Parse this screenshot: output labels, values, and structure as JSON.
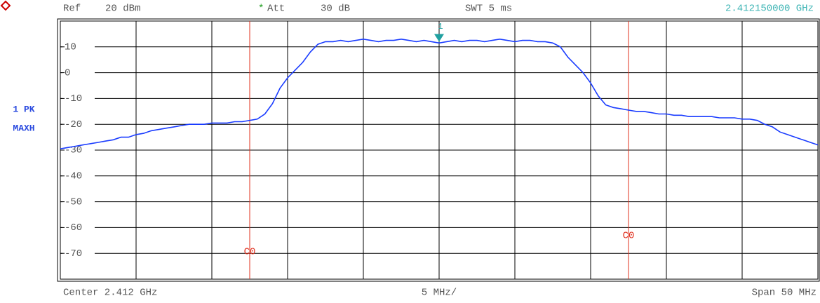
{
  "chart_data": {
    "type": "line",
    "ref": "Ref",
    "ref_level": "20 dBm",
    "att_flag": "*",
    "att": "Att",
    "att_value": "30 dB",
    "swt": "SWT 5 ms",
    "marker_frequency": "2.412150000 GHz",
    "trace_mode": "1 PK",
    "trace_detector": "MAXH",
    "center": "Center 2.412 GHz",
    "per_division": "5 MHz/",
    "span": "Span 50 MHz",
    "xlim": [
      2.387,
      2.437
    ],
    "xticks": [
      2.387,
      2.392,
      2.397,
      2.402,
      2.407,
      2.412,
      2.417,
      2.422,
      2.427,
      2.432,
      2.437
    ],
    "ylim": [
      -80,
      20
    ],
    "yticks": [
      10,
      0,
      -10,
      -20,
      -30,
      -40,
      -50,
      -60,
      -70
    ],
    "grid": true,
    "x": [
      2.387,
      2.3875,
      2.388,
      2.3885,
      2.389,
      2.3895,
      2.39,
      2.3905,
      2.391,
      2.3915,
      2.392,
      2.3925,
      2.393,
      2.3935,
      2.394,
      2.3945,
      2.395,
      2.3955,
      2.396,
      2.3965,
      2.397,
      2.3975,
      2.398,
      2.3985,
      2.399,
      2.3995,
      2.4,
      2.4005,
      2.401,
      2.4015,
      2.402,
      2.4025,
      2.403,
      2.4035,
      2.404,
      2.4045,
      2.405,
      2.4055,
      2.406,
      2.4065,
      2.407,
      2.4075,
      2.408,
      2.4085,
      2.409,
      2.4095,
      2.41,
      2.4105,
      2.411,
      2.4115,
      2.412,
      2.4125,
      2.413,
      2.4135,
      2.414,
      2.4145,
      2.415,
      2.4155,
      2.416,
      2.4165,
      2.417,
      2.4175,
      2.418,
      2.4185,
      2.419,
      2.4195,
      2.42,
      2.4205,
      2.421,
      2.4215,
      2.422,
      2.4225,
      2.423,
      2.4235,
      2.424,
      2.4245,
      2.425,
      2.4255,
      2.426,
      2.4265,
      2.427,
      2.4275,
      2.428,
      2.4285,
      2.429,
      2.4295,
      2.43,
      2.4305,
      2.431,
      2.4315,
      2.432,
      2.4325,
      2.433,
      2.4335,
      2.434,
      2.4345,
      2.435,
      2.4355,
      2.436,
      2.4365,
      2.437
    ],
    "series": [
      {
        "color": "#1a3cff",
        "values": [
          -29.5,
          -29,
          -28.5,
          -28,
          -27.5,
          -27,
          -26.5,
          -26,
          -25,
          -25,
          -24,
          -23.5,
          -22.5,
          -22,
          -21.5,
          -21,
          -20.5,
          -20,
          -20,
          -20,
          -19.5,
          -19.5,
          -19.5,
          -19,
          -19,
          -18.5,
          -18,
          -16,
          -12,
          -6,
          -2,
          1,
          4,
          8,
          11,
          12,
          12,
          12.5,
          12,
          12.5,
          13,
          12.5,
          12,
          12.5,
          12.5,
          13,
          12.5,
          12,
          12.5,
          12,
          11.5,
          12,
          12.5,
          12,
          12.5,
          12.5,
          12,
          12.5,
          13,
          12.5,
          12,
          12.5,
          12.5,
          12,
          12,
          11.5,
          10,
          6,
          3,
          0,
          -4,
          -9,
          -12.5,
          -13.5,
          -14,
          -14.5,
          -15,
          -15,
          -15.5,
          -16,
          -16,
          -16.5,
          -16.5,
          -17,
          -17,
          -17,
          -17,
          -17.5,
          -17.5,
          -17.5,
          -18,
          -18,
          -18.5,
          -20,
          -21,
          -23,
          -24,
          -25,
          -26,
          -27,
          -28
        ]
      }
    ],
    "lines": [
      {
        "label": "C0",
        "x": 2.3995,
        "color": "#e0301e"
      },
      {
        "label": "C0",
        "x": 2.4245,
        "color": "#e0301e"
      }
    ],
    "marker": {
      "label": "1",
      "x": 2.412,
      "y": 12,
      "color": "#20a0a0"
    }
  }
}
